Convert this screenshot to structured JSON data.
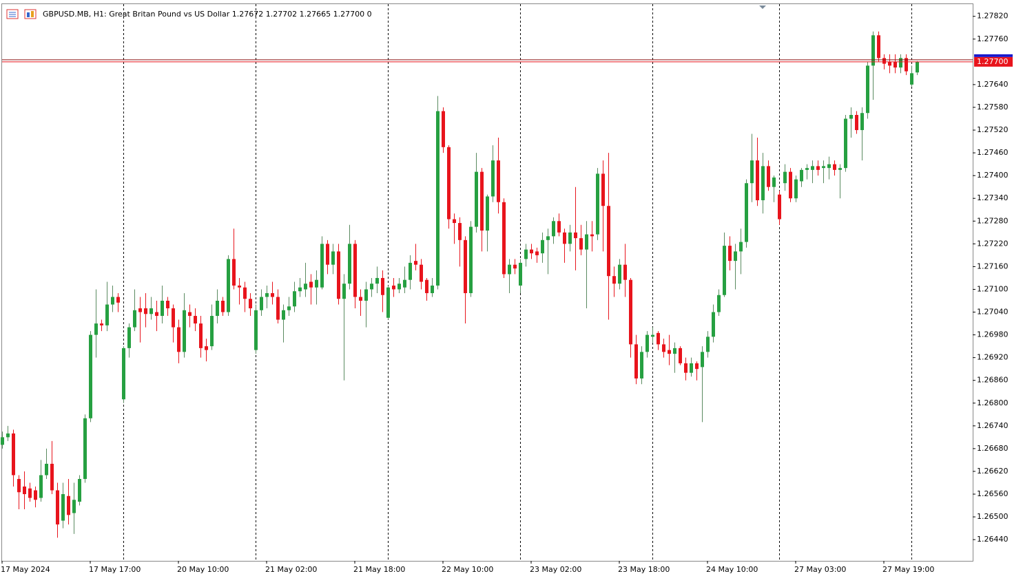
{
  "chart_data": {
    "type": "candlestick",
    "title": "GBPUSD.MB, H1:  Great Britan Pound vs US Dollar  1.27672 1.27702 1.27665 1.27700  0",
    "categories": [
      "17 May 2024",
      null,
      null,
      null,
      null,
      null,
      null,
      null,
      null,
      null,
      null,
      null,
      null,
      null,
      null,
      null,
      "17 May 17:00",
      null,
      null,
      null,
      null,
      null,
      null,
      null,
      null,
      null,
      null,
      null,
      null,
      null,
      null,
      null,
      "20 May 10:00",
      null,
      null,
      null,
      null,
      null,
      null,
      null,
      null,
      null,
      null,
      null,
      null,
      null,
      null,
      null,
      "21 May 02:00",
      null,
      null,
      null,
      null,
      null,
      null,
      null,
      null,
      null,
      null,
      null,
      null,
      null,
      null,
      null,
      "21 May 18:00",
      null,
      null,
      null,
      null,
      null,
      null,
      null,
      null,
      null,
      null,
      null,
      null,
      null,
      null,
      null,
      "22 May 10:00",
      null,
      null,
      null,
      null,
      null,
      null,
      null,
      null,
      null,
      null,
      null,
      null,
      null,
      null,
      null,
      "23 May 02:00",
      null,
      null,
      null,
      null,
      null,
      null,
      null,
      null,
      null,
      null,
      null,
      null,
      null,
      null,
      null,
      "23 May 18:00",
      null,
      null,
      null,
      null,
      null,
      null,
      null,
      null,
      null,
      null,
      null,
      null,
      null,
      null,
      null,
      "24 May 10:00",
      null,
      null,
      null,
      null,
      null,
      null,
      null,
      null,
      null,
      null,
      null,
      null,
      null,
      null,
      null,
      "27 May 03:00",
      null,
      null,
      null,
      null,
      null,
      null,
      null,
      null,
      null,
      null,
      null,
      null,
      null,
      null,
      null,
      "27 May 19:00",
      null,
      null,
      null,
      null,
      null,
      null
    ],
    "open": [
      1.2669,
      1.2671,
      1.2672,
      1.266,
      1.2658,
      1.26575,
      1.2657,
      1.2655,
      1.2661,
      1.2664,
      1.2657,
      1.2649,
      1.26555,
      1.2651,
      1.2654,
      1.266,
      1.2676,
      1.2698,
      1.2701,
      1.27005,
      1.2706,
      1.2708,
      1.2681,
      1.26945,
      1.27,
      1.2705,
      1.2705,
      1.27035,
      1.2704,
      1.2703,
      1.2707,
      1.2705,
      1.27,
      1.26935,
      1.2704,
      1.2703,
      1.2701,
      1.2695,
      1.2695,
      1.2703,
      1.2707,
      1.2704,
      1.2718,
      1.2711,
      1.27105,
      1.27075,
      1.2694,
      1.27045,
      1.2708,
      1.2709,
      1.2708,
      1.2702,
      1.27045,
      1.27055,
      1.27095,
      1.271,
      1.2712,
      1.27105,
      1.27105,
      1.2722,
      1.27165,
      1.272,
      1.27075,
      1.27115,
      1.2722,
      1.2708,
      1.2707,
      1.271,
      1.27115,
      1.2713,
      1.27025,
      1.2711,
      1.271,
      1.27105,
      1.27125,
      1.27175,
      1.27165,
      1.27125,
      1.2709,
      1.2711,
      1.2757,
      1.27475,
      1.27285,
      1.27275,
      1.2723,
      1.2709,
      1.27265,
      1.2741,
      1.27255,
      1.27345,
      1.2744,
      1.2733,
      1.2714,
      1.27165,
      1.2711,
      1.2718,
      1.27205,
      1.272,
      1.27195,
      1.2723,
      1.2724,
      1.2728,
      1.2725,
      1.2722,
      1.2725,
      1.27235,
      1.27205,
      1.27245,
      1.27245,
      1.27405,
      1.2732,
      1.27135,
      1.27115,
      1.27165,
      1.27125,
      1.26955,
      1.26865,
      1.26935,
      1.26975,
      1.26985,
      1.26955,
      1.2694,
      1.2693,
      1.26945,
      1.26905,
      1.2688,
      1.26905,
      1.26895,
      1.26935,
      1.26975,
      1.2704,
      1.27085,
      1.27215,
      1.27175,
      1.272,
      1.27225,
      1.2738,
      1.2744,
      1.27335,
      1.27425,
      1.2737,
      1.2735,
      1.2738,
      1.2741,
      1.2734,
      1.27385,
      1.27415,
      1.27415,
      1.27425,
      1.2742,
      1.2742,
      1.2743,
      1.27415,
      1.2742,
      1.2755,
      1.2756,
      1.2752,
      1.27565,
      1.2769,
      1.2777,
      1.2771,
      1.277,
      1.277,
      1.27685,
      1.2771,
      1.2764,
      1.27672
    ],
    "high": [
      1.26725,
      1.2674,
      1.2673,
      1.2661,
      1.2662,
      1.2659,
      1.2658,
      1.2665,
      1.2668,
      1.267,
      1.2659,
      1.2659,
      1.266,
      1.2659,
      1.2661,
      1.2677,
      1.2699,
      1.271,
      1.2702,
      1.2712,
      1.2711,
      1.2709,
      1.2695,
      1.2701,
      1.271,
      1.2708,
      1.2709,
      1.2708,
      1.2707,
      1.2711,
      1.2708,
      1.2706,
      1.2702,
      1.2709,
      1.2706,
      1.2705,
      1.2703,
      1.2697,
      1.2706,
      1.271,
      1.2708,
      1.2719,
      1.2726,
      1.2713,
      1.2712,
      1.2709,
      1.2706,
      1.271,
      1.2711,
      1.2712,
      1.271,
      1.2706,
      1.2708,
      1.2712,
      1.2713,
      1.2717,
      1.2714,
      1.2715,
      1.2724,
      1.2723,
      1.2722,
      1.2722,
      1.2714,
      1.2727,
      1.2723,
      1.271,
      1.2712,
      1.2713,
      1.2716,
      1.2715,
      1.2711,
      1.2713,
      1.2713,
      1.2716,
      1.2719,
      1.2722,
      1.2718,
      1.2713,
      1.2713,
      1.2761,
      1.2758,
      1.2748,
      1.273,
      1.2729,
      1.2724,
      1.2728,
      1.2746,
      1.2742,
      1.2735,
      1.2748,
      1.275,
      1.2734,
      1.2718,
      1.2718,
      1.2718,
      1.2722,
      1.2722,
      1.2721,
      1.2725,
      1.2726,
      1.2729,
      1.273,
      1.2726,
      1.2727,
      1.2737,
      1.2727,
      1.2728,
      1.2728,
      1.2742,
      1.2744,
      1.2746,
      1.2716,
      1.2718,
      1.2722,
      1.2713,
      1.2698,
      1.2695,
      1.2699,
      1.27,
      1.2699,
      1.2697,
      1.2698,
      1.2696,
      1.2695,
      1.2692,
      1.2692,
      1.2691,
      1.2695,
      1.2699,
      1.2706,
      1.271,
      1.2725,
      1.2724,
      1.2722,
      1.2726,
      1.2739,
      1.2751,
      1.275,
      1.2746,
      1.2744,
      1.274,
      1.2736,
      1.2743,
      1.2742,
      1.274,
      1.2742,
      1.2743,
      1.2744,
      1.2744,
      1.2744,
      1.2745,
      1.2744,
      1.2743,
      1.2756,
      1.2758,
      1.2757,
      1.2758,
      1.277,
      1.2778,
      1.2778,
      1.2772,
      1.2772,
      1.2772,
      1.2772,
      1.2772,
      1.2769,
      1.27702
    ],
    "low": [
      1.2668,
      1.267,
      1.2658,
      1.2652,
      1.2652,
      1.2654,
      1.26525,
      1.2654,
      1.266,
      1.2656,
      1.26445,
      1.2647,
      1.2648,
      1.26455,
      1.2653,
      1.2659,
      1.2675,
      1.2692,
      1.2699,
      1.2699,
      1.2704,
      1.2704,
      1.268,
      1.2692,
      1.2699,
      1.2696,
      1.27,
      1.2702,
      1.2699,
      1.2701,
      1.2703,
      1.2696,
      1.26905,
      1.2692,
      1.27,
      1.2699,
      1.2692,
      1.2691,
      1.2694,
      1.2701,
      1.2703,
      1.2703,
      1.271,
      1.2706,
      1.2704,
      1.2703,
      1.2693,
      1.2703,
      1.2705,
      1.2706,
      1.2701,
      1.2696,
      1.2703,
      1.2704,
      1.2708,
      1.2708,
      1.2706,
      1.2706,
      1.271,
      1.2714,
      1.2714,
      1.2706,
      1.2686,
      1.271,
      1.2705,
      1.2703,
      1.27,
      1.2708,
      1.2709,
      1.2704,
      1.2702,
      1.2708,
      1.2709,
      1.2709,
      1.271,
      1.2715,
      1.271,
      1.2707,
      1.2708,
      1.271,
      1.2746,
      1.2726,
      1.2722,
      1.2716,
      1.2701,
      1.2708,
      1.2725,
      1.272,
      1.272,
      1.2733,
      1.273,
      1.2713,
      1.2709,
      1.2714,
      1.2709,
      1.2716,
      1.2718,
      1.2717,
      1.2717,
      1.2714,
      1.2722,
      1.2724,
      1.2717,
      1.272,
      1.2715,
      1.2719,
      1.2705,
      1.272,
      1.2723,
      1.272,
      1.2702,
      1.2708,
      1.271,
      1.2708,
      1.2692,
      1.2685,
      1.2685,
      1.2692,
      1.2696,
      1.2694,
      1.2692,
      1.269,
      1.2688,
      1.269,
      1.2686,
      1.2687,
      1.2686,
      1.2675,
      1.2692,
      1.2696,
      1.2703,
      1.2708,
      1.2715,
      1.271,
      1.2714,
      1.2721,
      1.2733,
      1.2732,
      1.273,
      1.2736,
      1.2733,
      1.2727,
      1.2736,
      1.2733,
      1.2733,
      1.2737,
      1.2739,
      1.2738,
      1.274,
      1.2738,
      1.2739,
      1.274,
      1.2734,
      1.2741,
      1.275,
      1.2751,
      1.2744,
      1.2755,
      1.276,
      1.277,
      1.2768,
      1.2767,
      1.2767,
      1.2767,
      1.27665,
      1.27635,
      1.27665
    ],
    "close": [
      1.2671,
      1.2672,
      1.2661,
      1.26565,
      1.2656,
      1.2655,
      1.26545,
      1.2661,
      1.2664,
      1.2657,
      1.2648,
      1.2656,
      1.26505,
      1.26545,
      1.266,
      1.2676,
      1.2698,
      1.2701,
      1.27005,
      1.2706,
      1.2708,
      1.27065,
      1.26945,
      1.27,
      1.27045,
      1.2704,
      1.27035,
      1.2705,
      1.2703,
      1.2707,
      1.2705,
      1.27,
      1.26935,
      1.27045,
      1.2703,
      1.2701,
      1.26945,
      1.2694,
      1.2703,
      1.2707,
      1.2704,
      1.2718,
      1.2711,
      1.27105,
      1.27075,
      1.2705,
      1.27045,
      1.2708,
      1.2709,
      1.2708,
      1.2702,
      1.27045,
      1.27055,
      1.27095,
      1.27105,
      1.27115,
      1.27105,
      1.27125,
      1.2722,
      1.27165,
      1.272,
      1.27075,
      1.27115,
      1.2722,
      1.2708,
      1.2707,
      1.271,
      1.27115,
      1.2713,
      1.27085,
      1.27105,
      1.271,
      1.27115,
      1.27125,
      1.2717,
      1.27165,
      1.2712,
      1.2709,
      1.2711,
      1.2757,
      1.27475,
      1.27285,
      1.27275,
      1.2723,
      1.2709,
      1.27265,
      1.2741,
      1.27255,
      1.27345,
      1.2744,
      1.2733,
      1.2714,
      1.27165,
      1.27155,
      1.2717,
      1.27205,
      1.27195,
      1.2719,
      1.2723,
      1.2724,
      1.2728,
      1.2725,
      1.2722,
      1.2725,
      1.27235,
      1.27205,
      1.27245,
      1.2724,
      1.27405,
      1.2732,
      1.27135,
      1.27115,
      1.27165,
      1.27125,
      1.26955,
      1.26865,
      1.26935,
      1.2698,
      1.2698,
      1.26955,
      1.26935,
      1.2693,
      1.26945,
      1.26905,
      1.2688,
      1.26905,
      1.2689,
      1.26935,
      1.26975,
      1.2704,
      1.27085,
      1.27215,
      1.27175,
      1.272,
      1.27225,
      1.2738,
      1.2744,
      1.27335,
      1.27425,
      1.2737,
      1.27395,
      1.27285,
      1.2741,
      1.2734,
      1.2739,
      1.27415,
      1.2742,
      1.27425,
      1.27415,
      1.27425,
      1.2743,
      1.27415,
      1.2742,
      1.2755,
      1.2756,
      1.2752,
      1.27565,
      1.2769,
      1.2777,
      1.2771,
      1.27695,
      1.2769,
      1.27685,
      1.2771,
      1.27675,
      1.2767,
      1.277
    ],
    "up_color": "#26a041",
    "down_color": "#e8141c",
    "price_line": {
      "value": 1.277,
      "label": "1.27700",
      "color": "#e8141c"
    },
    "ylim": [
      1.26384,
      1.27854
    ],
    "yticks": [
      {
        "value": 1.2782,
        "label": "1.27820"
      },
      {
        "value": 1.2776,
        "label": "1.27760"
      },
      {
        "value": 1.2764,
        "label": "1.27640"
      },
      {
        "value": 1.2758,
        "label": "1.27580"
      },
      {
        "value": 1.2752,
        "label": "1.27520"
      },
      {
        "value": 1.2746,
        "label": "1.27460"
      },
      {
        "value": 1.274,
        "label": "1.27400"
      },
      {
        "value": 1.2734,
        "label": "1.27340"
      },
      {
        "value": 1.2728,
        "label": "1.27280"
      },
      {
        "value": 1.2722,
        "label": "1.27220"
      },
      {
        "value": 1.2716,
        "label": "1.27160"
      },
      {
        "value": 1.271,
        "label": "1.27100"
      },
      {
        "value": 1.2704,
        "label": "1.27040"
      },
      {
        "value": 1.2698,
        "label": "1.26980"
      },
      {
        "value": 1.2692,
        "label": "1.26920"
      },
      {
        "value": 1.2686,
        "label": "1.26860"
      },
      {
        "value": 1.268,
        "label": "1.26800"
      },
      {
        "value": 1.2674,
        "label": "1.26740"
      },
      {
        "value": 1.2668,
        "label": "1.26680"
      },
      {
        "value": 1.2662,
        "label": "1.26620"
      },
      {
        "value": 1.2656,
        "label": "1.26560"
      },
      {
        "value": 1.265,
        "label": "1.26500"
      },
      {
        "value": 1.2644,
        "label": "1.26440"
      }
    ]
  }
}
